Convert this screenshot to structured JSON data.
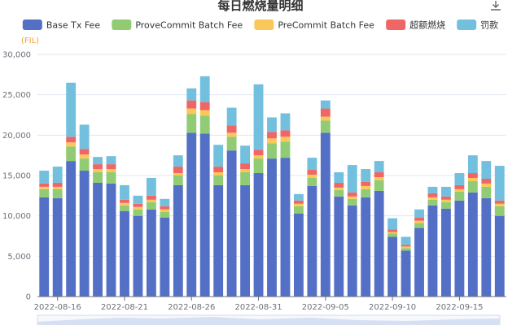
{
  "chart_data": {
    "type": "bar",
    "stacked": true,
    "title": "每日燃烧量明细",
    "unit_label": "(FIL)",
    "ylim": [
      0,
      30000
    ],
    "y_ticks": [
      "0",
      "5,000",
      "10,000",
      "15,000",
      "20,000",
      "25,000",
      "30,000"
    ],
    "y_tick_values": [
      0,
      5000,
      10000,
      15000,
      20000,
      25000,
      30000
    ],
    "grid": true,
    "legend_position": "top",
    "x_tick_labels": [
      {
        "index": 1,
        "label": "2022-08-16"
      },
      {
        "index": 6,
        "label": "2022-08-21"
      },
      {
        "index": 11,
        "label": "2022-08-26"
      },
      {
        "index": 16,
        "label": "2022-08-31"
      },
      {
        "index": 21,
        "label": "2022-09-05"
      },
      {
        "index": 26,
        "label": "2022-09-10"
      },
      {
        "index": 31,
        "label": "2022-09-15"
      }
    ],
    "categories": [
      "2022-08-15",
      "2022-08-16",
      "2022-08-17",
      "2022-08-18",
      "2022-08-19",
      "2022-08-20",
      "2022-08-21",
      "2022-08-22",
      "2022-08-23",
      "2022-08-24",
      "2022-08-25",
      "2022-08-26",
      "2022-08-27",
      "2022-08-28",
      "2022-08-29",
      "2022-08-30",
      "2022-08-31",
      "2022-09-01",
      "2022-09-02",
      "2022-09-03",
      "2022-09-04",
      "2022-09-05",
      "2022-09-06",
      "2022-09-07",
      "2022-09-08",
      "2022-09-09",
      "2022-09-10",
      "2022-09-11",
      "2022-09-12",
      "2022-09-13",
      "2022-09-14",
      "2022-09-15",
      "2022-09-16",
      "2022-09-17",
      "2022-09-18"
    ],
    "series": [
      {
        "name": "Base Tx Fee",
        "color": "#5470c6",
        "values": [
          12300,
          12200,
          16800,
          15600,
          14100,
          14000,
          10600,
          10000,
          10800,
          9800,
          13800,
          20300,
          20200,
          13800,
          18100,
          13800,
          15300,
          17100,
          17200,
          10300,
          13700,
          20300,
          12400,
          11300,
          12300,
          13100,
          7400,
          5700,
          8500,
          11300,
          10900,
          11900,
          12900,
          12200,
          10000
        ]
      },
      {
        "name": "ProveCommit Batch Fee",
        "color": "#91cc75",
        "values": [
          1000,
          1100,
          1800,
          1500,
          1300,
          1400,
          700,
          800,
          900,
          700,
          1200,
          2300,
          2200,
          1200,
          1700,
          1600,
          1800,
          1900,
          2000,
          900,
          1000,
          1500,
          800,
          800,
          1000,
          1300,
          400,
          300,
          600,
          700,
          800,
          1100,
          1400,
          1400,
          1200
        ]
      },
      {
        "name": "PreCommit Batch Fee",
        "color": "#fac858",
        "values": [
          300,
          300,
          500,
          500,
          400,
          400,
          300,
          300,
          300,
          300,
          300,
          700,
          700,
          400,
          500,
          400,
          400,
          600,
          600,
          300,
          400,
          500,
          300,
          300,
          400,
          400,
          200,
          200,
          300,
          300,
          300,
          300,
          400,
          400,
          300
        ]
      },
      {
        "name": "超额燃烧",
        "color": "#ee6666",
        "values": [
          400,
          500,
          700,
          700,
          600,
          600,
          400,
          400,
          500,
          400,
          800,
          1000,
          1000,
          700,
          900,
          700,
          700,
          800,
          800,
          400,
          600,
          1000,
          600,
          500,
          500,
          600,
          300,
          200,
          400,
          500,
          400,
          500,
          600,
          600,
          400
        ]
      },
      {
        "name": "罚款",
        "color": "#73c0de",
        "values": [
          1600,
          2000,
          6700,
          3000,
          900,
          1000,
          1800,
          1000,
          2200,
          900,
          1400,
          1500,
          3200,
          2700,
          2200,
          2200,
          8100,
          1800,
          2100,
          800,
          1500,
          1000,
          1300,
          3400,
          1600,
          1400,
          1400,
          1000,
          1000,
          800,
          1200,
          1500,
          2200,
          2200,
          4300
        ]
      }
    ]
  },
  "toolbar": {
    "download_icon": "download-icon"
  }
}
